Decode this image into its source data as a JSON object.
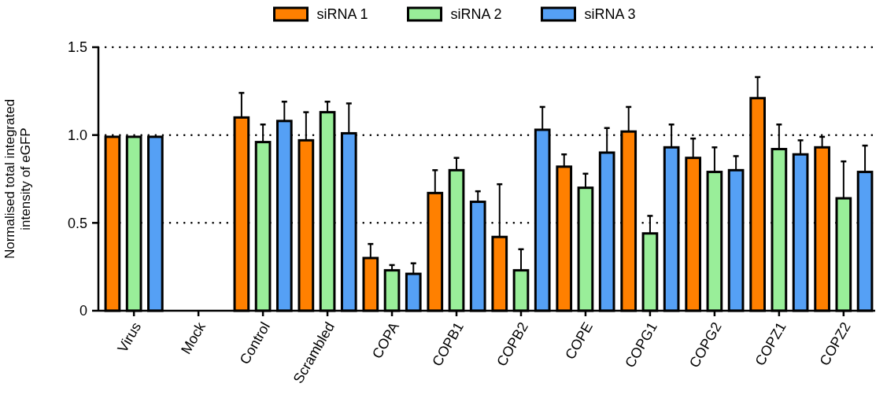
{
  "chart_data": {
    "type": "bar",
    "ylabel": "Normalised total integrated intensity of eGFP",
    "categories": [
      "Virus",
      "Mock",
      "Control",
      "Scrambled",
      "COPA",
      "COPB1",
      "COPB2",
      "COPE",
      "COPG1",
      "COPG2",
      "COPZ1",
      "COPZ2"
    ],
    "series": [
      {
        "name": "siRNA 1",
        "color": "#ff8000",
        "values": [
          0.99,
          0,
          1.1,
          0.97,
          0.3,
          0.67,
          0.42,
          0.82,
          1.02,
          0.87,
          1.21,
          0.93
        ],
        "errors": [
          null,
          null,
          [
            1.1,
            1.24
          ],
          [
            0.97,
            1.13
          ],
          [
            0.3,
            0.38
          ],
          [
            0.67,
            0.8
          ],
          [
            0.42,
            0.72
          ],
          [
            0.82,
            0.89
          ],
          [
            1.02,
            1.16
          ],
          [
            0.87,
            0.98
          ],
          [
            1.21,
            1.33
          ],
          [
            0.93,
            0.99
          ]
        ]
      },
      {
        "name": "siRNA 2",
        "color": "#99ee99",
        "values": [
          0.99,
          0,
          0.96,
          1.13,
          0.23,
          0.8,
          0.23,
          0.7,
          0.44,
          0.79,
          0.92,
          0.64
        ],
        "errors": [
          null,
          null,
          [
            0.96,
            1.06
          ],
          [
            1.13,
            1.19
          ],
          [
            0.23,
            0.26
          ],
          [
            0.8,
            0.87
          ],
          [
            0.23,
            0.35
          ],
          [
            0.7,
            0.78
          ],
          [
            0.44,
            0.54
          ],
          [
            0.79,
            0.93
          ],
          [
            0.92,
            1.06
          ],
          [
            0.64,
            0.85
          ]
        ]
      },
      {
        "name": "siRNA 3",
        "color": "#55a0f5",
        "values": [
          0.99,
          0,
          1.08,
          1.01,
          0.21,
          0.62,
          1.03,
          0.9,
          0.93,
          0.8,
          0.89,
          0.79
        ],
        "errors": [
          null,
          null,
          [
            1.08,
            1.19
          ],
          [
            1.01,
            1.18
          ],
          [
            0.21,
            0.27
          ],
          [
            0.62,
            0.68
          ],
          [
            1.03,
            1.16
          ],
          [
            0.9,
            1.04
          ],
          [
            0.93,
            1.06
          ],
          [
            0.8,
            0.88
          ],
          [
            0.89,
            0.97
          ],
          [
            0.79,
            0.94
          ]
        ]
      }
    ],
    "ylim": [
      0,
      1.5
    ],
    "yticks": [
      0,
      0.5,
      {
        "value": 1,
        "label": "1.0"
      },
      1.5
    ],
    "grid": "y",
    "legend": "top"
  }
}
